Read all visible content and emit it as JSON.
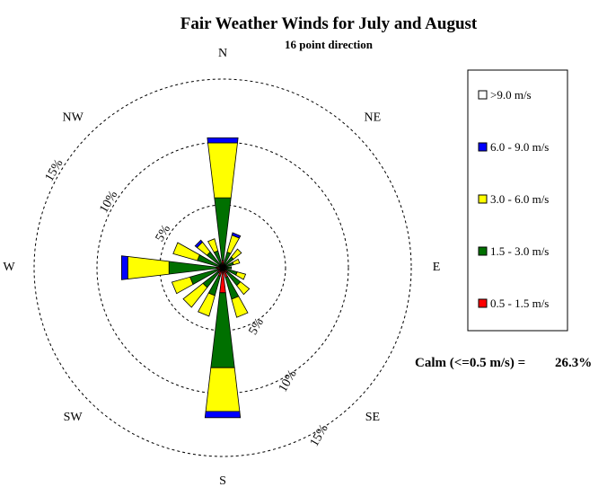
{
  "chart_data": {
    "type": "wind-rose",
    "title": "Fair Weather Winds for July and August",
    "subtitle": "16 point direction",
    "directions": [
      "N",
      "NNE",
      "NE",
      "ENE",
      "E",
      "ESE",
      "SE",
      "SSE",
      "S",
      "SSW",
      "SW",
      "WSW",
      "W",
      "WNW",
      "NW",
      "NNW"
    ],
    "compass_labels": [
      {
        "label": "N",
        "angle": 0
      },
      {
        "label": "NE",
        "angle": 45
      },
      {
        "label": "E",
        "angle": 90
      },
      {
        "label": "SE",
        "angle": 135
      },
      {
        "label": "S",
        "angle": 180
      },
      {
        "label": "SW",
        "angle": 225
      },
      {
        "label": "W",
        "angle": 270
      },
      {
        "label": "NW",
        "angle": 315
      }
    ],
    "rings": [
      {
        "value": 5,
        "label": "5%"
      },
      {
        "value": 10,
        "label": "10%"
      },
      {
        "value": 15,
        "label": "15%"
      }
    ],
    "unit": "%",
    "series": [
      {
        "name": "0.5 - 1.5 m/s",
        "color": "#ff0000",
        "values": [
          0.6,
          0.3,
          0.3,
          0.3,
          0.3,
          0.3,
          0.5,
          0.8,
          2.0,
          0.7,
          0.5,
          0.4,
          0.5,
          0.3,
          0.3,
          0.3
        ]
      },
      {
        "name": "1.5 - 3.0 m/s",
        "color": "#007000",
        "values": [
          5.0,
          1.0,
          0.8,
          0.6,
          0.4,
          0.9,
          1.3,
          1.8,
          6.0,
          1.6,
          1.5,
          2.3,
          3.8,
          1.8,
          1.3,
          1.1
        ]
      },
      {
        "name": "3.0 - 6.0 m/s",
        "color": "#ffff00",
        "values": [
          4.4,
          1.4,
          0.8,
          0.5,
          0.0,
          0.7,
          0.9,
          1.5,
          3.5,
          1.7,
          2.0,
          1.5,
          3.3,
          2.0,
          1.0,
          1.0
        ]
      },
      {
        "name": "6.0 - 9.0 m/s",
        "color": "#0000ff",
        "values": [
          0.4,
          0.2,
          0.0,
          0.0,
          0.0,
          0.0,
          0.0,
          0.0,
          0.5,
          0.0,
          0.0,
          0.0,
          0.5,
          0.0,
          0.2,
          0.0
        ]
      },
      {
        "name": ">9.0 m/s",
        "color": "#ffffff",
        "values": [
          0,
          0,
          0,
          0,
          0,
          0,
          0,
          0,
          0,
          0,
          0,
          0,
          0,
          0,
          0,
          0
        ]
      }
    ],
    "legend": {
      "placement": "right",
      "order": [
        ">9.0 m/s",
        "6.0 - 9.0 m/s",
        "3.0 - 6.0 m/s",
        "1.5 - 3.0 m/s",
        "0.5 - 1.5 m/s"
      ]
    },
    "calm": {
      "label": "Calm (<=0.5 m/s) =",
      "value": "26.3%"
    }
  }
}
